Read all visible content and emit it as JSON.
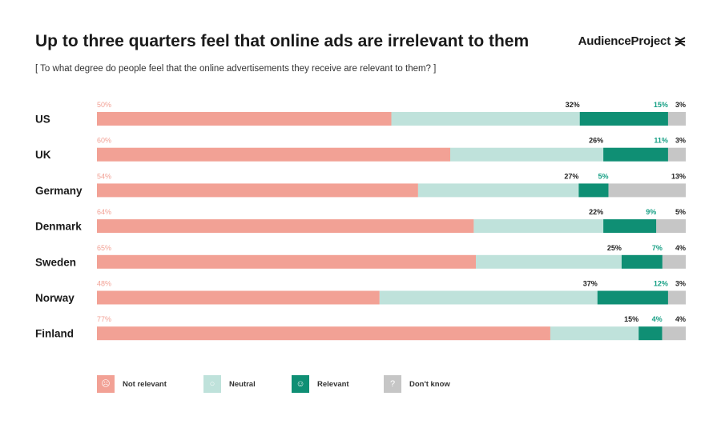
{
  "header": {
    "title": "Up to three quarters feel that online ads are irrelevant to them",
    "subtitle": "[ To what degree do people feel that the online advertisements they receive are relevant to them? ]",
    "brand": "AudienceProject"
  },
  "colors": {
    "not_relevant": "#f2a195",
    "neutral": "#bfe2db",
    "relevant": "#0f8f74",
    "dont_know": "#c6c6c6",
    "label_not_relevant": "#f2a195",
    "label_neutral": "#222222",
    "label_relevant": "#17a085",
    "label_dont_know": "#222222"
  },
  "chart_data": {
    "type": "bar",
    "orientation": "horizontal",
    "stacked": true,
    "unit": "%",
    "categories": [
      "US",
      "UK",
      "Germany",
      "Denmark",
      "Sweden",
      "Norway",
      "Finland"
    ],
    "series": [
      {
        "name": "Not relevant",
        "key": "not_relevant",
        "values": [
          50,
          60,
          54,
          64,
          65,
          48,
          77
        ]
      },
      {
        "name": "Neutral",
        "key": "neutral",
        "values": [
          32,
          26,
          27,
          22,
          25,
          37,
          15
        ]
      },
      {
        "name": "Relevant",
        "key": "relevant",
        "values": [
          15,
          11,
          5,
          9,
          7,
          12,
          4
        ]
      },
      {
        "name": "Don't know",
        "key": "dont_know",
        "values": [
          3,
          3,
          13,
          5,
          4,
          3,
          4
        ]
      }
    ],
    "legend_position": "bottom",
    "grid": false
  },
  "legend": [
    {
      "label": "Not relevant",
      "key": "not_relevant",
      "icon": "sad-face-icon",
      "glyph": "☹"
    },
    {
      "label": "Neutral",
      "key": "neutral",
      "icon": "neutral-face-icon",
      "glyph": "○"
    },
    {
      "label": "Relevant",
      "key": "relevant",
      "icon": "smiley-face-icon",
      "glyph": "☺"
    },
    {
      "label": "Don't know",
      "key": "dont_know",
      "icon": "question-mark-icon",
      "glyph": "?"
    }
  ]
}
